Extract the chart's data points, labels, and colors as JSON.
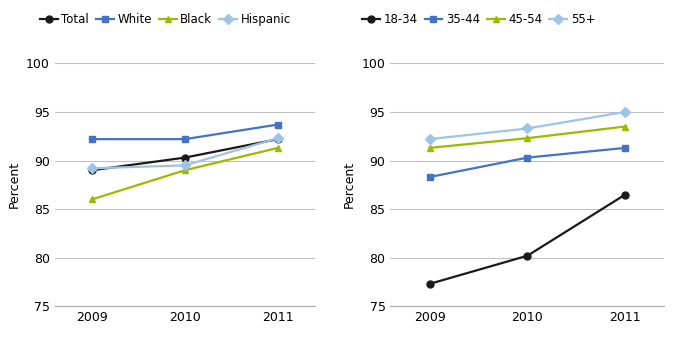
{
  "years": [
    2009,
    2010,
    2011
  ],
  "left_chart": {
    "Total": [
      89.0,
      90.3,
      92.2
    ],
    "White": [
      92.2,
      92.2,
      93.7
    ],
    "Black": [
      86.0,
      89.0,
      91.3
    ],
    "Hispanic": [
      89.2,
      89.5,
      92.3
    ]
  },
  "right_chart": {
    "18-34": [
      77.3,
      80.2,
      86.5
    ],
    "35-44": [
      88.3,
      90.3,
      91.3
    ],
    "45-54": [
      91.3,
      92.3,
      93.5
    ],
    "55+": [
      92.2,
      93.3,
      95.0
    ]
  },
  "left_series_styles": {
    "Total": {
      "color": "#1a1a1a",
      "marker": "o",
      "linestyle": "-"
    },
    "White": {
      "color": "#4472c4",
      "marker": "s",
      "linestyle": "-"
    },
    "Black": {
      "color": "#9bba00",
      "marker": "^",
      "linestyle": "-"
    },
    "Hispanic": {
      "color": "#9dc3e6",
      "marker": "D",
      "linestyle": "-"
    }
  },
  "right_series_styles": {
    "18-34": {
      "color": "#1a1a1a",
      "marker": "o",
      "linestyle": "-"
    },
    "35-44": {
      "color": "#4472c4",
      "marker": "s",
      "linestyle": "-"
    },
    "45-54": {
      "color": "#9bba00",
      "marker": "^",
      "linestyle": "-"
    },
    "55+": {
      "color": "#9dc3e6",
      "marker": "D",
      "linestyle": "-"
    }
  },
  "ylim": [
    75,
    100
  ],
  "yticks": [
    75,
    80,
    85,
    90,
    95,
    100
  ],
  "ylabel": "Percent",
  "grid_color": "#c0c0c0",
  "background_color": "#ffffff",
  "markersize": 5,
  "linewidth": 1.6,
  "legend_fontsize": 8.5
}
